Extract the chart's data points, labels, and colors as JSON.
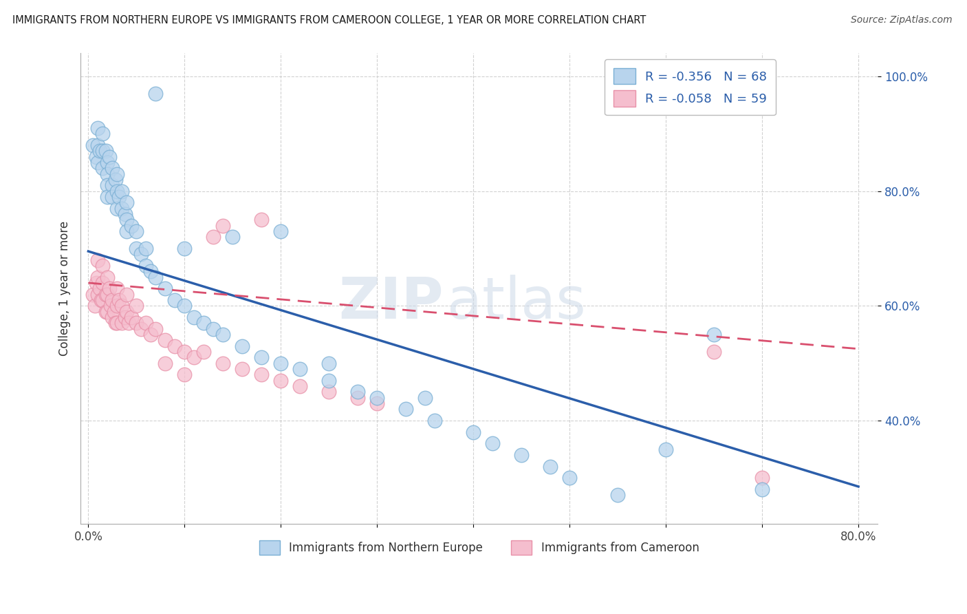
{
  "title": "IMMIGRANTS FROM NORTHERN EUROPE VS IMMIGRANTS FROM CAMEROON COLLEGE, 1 YEAR OR MORE CORRELATION CHART",
  "source": "Source: ZipAtlas.com",
  "ylabel": "College, 1 year or more",
  "legend_label_blue": "Immigrants from Northern Europe",
  "legend_label_pink": "Immigrants from Cameroon",
  "R_blue": -0.356,
  "N_blue": 68,
  "R_pink": -0.058,
  "N_pink": 59,
  "blue_dot_face": "#b8d4ed",
  "blue_dot_edge": "#7aafd4",
  "pink_dot_face": "#f5bece",
  "pink_dot_edge": "#e890a8",
  "blue_line_color": "#2b5eaa",
  "pink_line_color": "#d94f6e",
  "legend_text_color": "#2b5eaa",
  "xlim": [
    -0.008,
    0.82
  ],
  "ylim": [
    0.22,
    1.04
  ],
  "xtick_positions": [
    0.0,
    0.1,
    0.2,
    0.3,
    0.4,
    0.5,
    0.6,
    0.7,
    0.8
  ],
  "ytick_positions": [
    0.4,
    0.6,
    0.8,
    1.0
  ],
  "blue_trend_y": [
    0.695,
    0.285
  ],
  "pink_trend_y": [
    0.64,
    0.525
  ],
  "blue_x": [
    0.005,
    0.008,
    0.01,
    0.01,
    0.01,
    0.012,
    0.015,
    0.015,
    0.015,
    0.018,
    0.02,
    0.02,
    0.02,
    0.02,
    0.022,
    0.025,
    0.025,
    0.025,
    0.028,
    0.03,
    0.03,
    0.03,
    0.032,
    0.035,
    0.035,
    0.038,
    0.04,
    0.04,
    0.04,
    0.045,
    0.05,
    0.05,
    0.055,
    0.06,
    0.06,
    0.065,
    0.07,
    0.08,
    0.09,
    0.1,
    0.11,
    0.12,
    0.13,
    0.14,
    0.16,
    0.18,
    0.2,
    0.22,
    0.25,
    0.28,
    0.3,
    0.33,
    0.36,
    0.4,
    0.42,
    0.45,
    0.48,
    0.5,
    0.55,
    0.6,
    0.65,
    0.7,
    0.07,
    0.1,
    0.15,
    0.2,
    0.25,
    0.35
  ],
  "blue_y": [
    0.88,
    0.86,
    0.91,
    0.88,
    0.85,
    0.87,
    0.9,
    0.87,
    0.84,
    0.87,
    0.85,
    0.83,
    0.81,
    0.79,
    0.86,
    0.84,
    0.81,
    0.79,
    0.82,
    0.83,
    0.8,
    0.77,
    0.79,
    0.8,
    0.77,
    0.76,
    0.78,
    0.75,
    0.73,
    0.74,
    0.73,
    0.7,
    0.69,
    0.7,
    0.67,
    0.66,
    0.65,
    0.63,
    0.61,
    0.6,
    0.58,
    0.57,
    0.56,
    0.55,
    0.53,
    0.51,
    0.5,
    0.49,
    0.47,
    0.45,
    0.44,
    0.42,
    0.4,
    0.38,
    0.36,
    0.34,
    0.32,
    0.3,
    0.27,
    0.35,
    0.55,
    0.28,
    0.97,
    0.7,
    0.72,
    0.73,
    0.5,
    0.44
  ],
  "pink_x": [
    0.005,
    0.007,
    0.008,
    0.01,
    0.01,
    0.01,
    0.012,
    0.013,
    0.015,
    0.015,
    0.015,
    0.018,
    0.018,
    0.02,
    0.02,
    0.02,
    0.022,
    0.023,
    0.025,
    0.025,
    0.027,
    0.028,
    0.03,
    0.03,
    0.03,
    0.032,
    0.035,
    0.035,
    0.038,
    0.04,
    0.04,
    0.042,
    0.045,
    0.05,
    0.05,
    0.055,
    0.06,
    0.065,
    0.07,
    0.08,
    0.09,
    0.1,
    0.11,
    0.12,
    0.14,
    0.16,
    0.18,
    0.2,
    0.22,
    0.25,
    0.28,
    0.3,
    0.65,
    0.7,
    0.08,
    0.1,
    0.13,
    0.14,
    0.18
  ],
  "pink_y": [
    0.62,
    0.6,
    0.64,
    0.68,
    0.65,
    0.62,
    0.63,
    0.61,
    0.67,
    0.64,
    0.61,
    0.62,
    0.59,
    0.65,
    0.62,
    0.59,
    0.63,
    0.6,
    0.61,
    0.58,
    0.59,
    0.57,
    0.63,
    0.6,
    0.57,
    0.61,
    0.6,
    0.57,
    0.58,
    0.62,
    0.59,
    0.57,
    0.58,
    0.6,
    0.57,
    0.56,
    0.57,
    0.55,
    0.56,
    0.54,
    0.53,
    0.52,
    0.51,
    0.52,
    0.5,
    0.49,
    0.48,
    0.47,
    0.46,
    0.45,
    0.44,
    0.43,
    0.52,
    0.3,
    0.5,
    0.48,
    0.72,
    0.74,
    0.75
  ],
  "watermark_zip": "ZIP",
  "watermark_atlas": "atlas"
}
